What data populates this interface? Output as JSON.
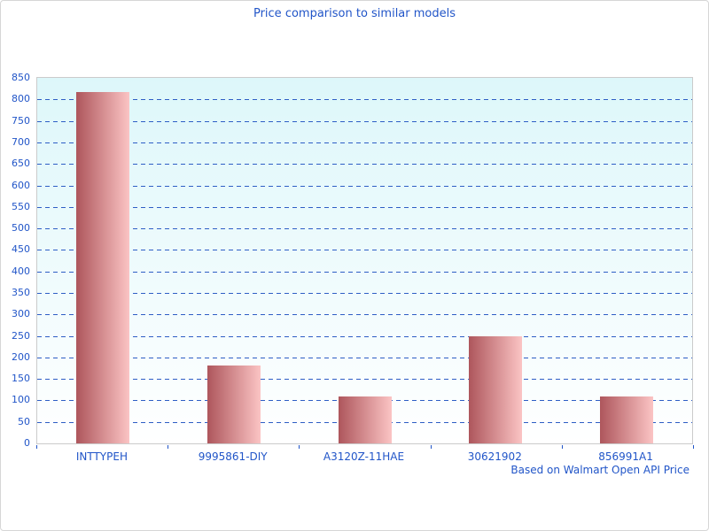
{
  "colors": {
    "text_blue": "#2155c8",
    "gridline_blue": "#2e5ec5",
    "axis_gray": "#cbcbcb",
    "plot_bg_top": "#ddf7fa",
    "plot_bg_bottom": "#ffffff",
    "bar_gradient_left": "#ae565c",
    "bar_gradient_right": "#fbc4c4"
  },
  "chart_data": {
    "type": "bar",
    "title": "Price comparison to similar models",
    "categories": [
      "INTTYPEH",
      "9995861-DIY",
      "A3120Z-11HAE",
      "30621902",
      "856991A1"
    ],
    "values": [
      817,
      182,
      110,
      250,
      110
    ],
    "xlabel": "",
    "ylabel": "",
    "ylim": [
      0,
      850
    ],
    "ytick_step": 50,
    "ytick_labels": [
      "0",
      "50",
      "100",
      "150",
      "200",
      "250",
      "300",
      "350",
      "400",
      "450",
      "500",
      "550",
      "600",
      "650",
      "700",
      "750",
      "800",
      "850"
    ],
    "grid": "horizontal-dashed",
    "legend_position": "none",
    "annotation": "Based on Walmart Open API Price"
  }
}
